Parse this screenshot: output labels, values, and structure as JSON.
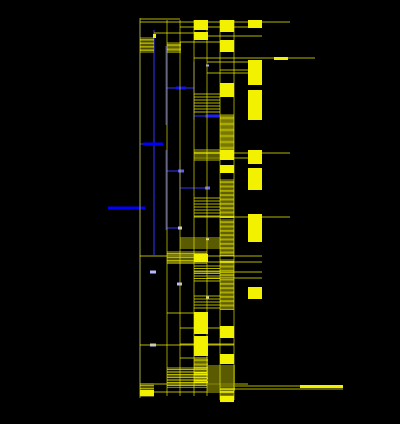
{
  "colors": {
    "background": "#000000",
    "leaf": "#f2f200",
    "edge": "#d8d800",
    "inner_edge": "#3434ff",
    "deep_node": "#0000ff",
    "mid_node": "#3a3aff",
    "light_node": "#8a8aff",
    "pale_node": "#b8b8ff"
  }
}
